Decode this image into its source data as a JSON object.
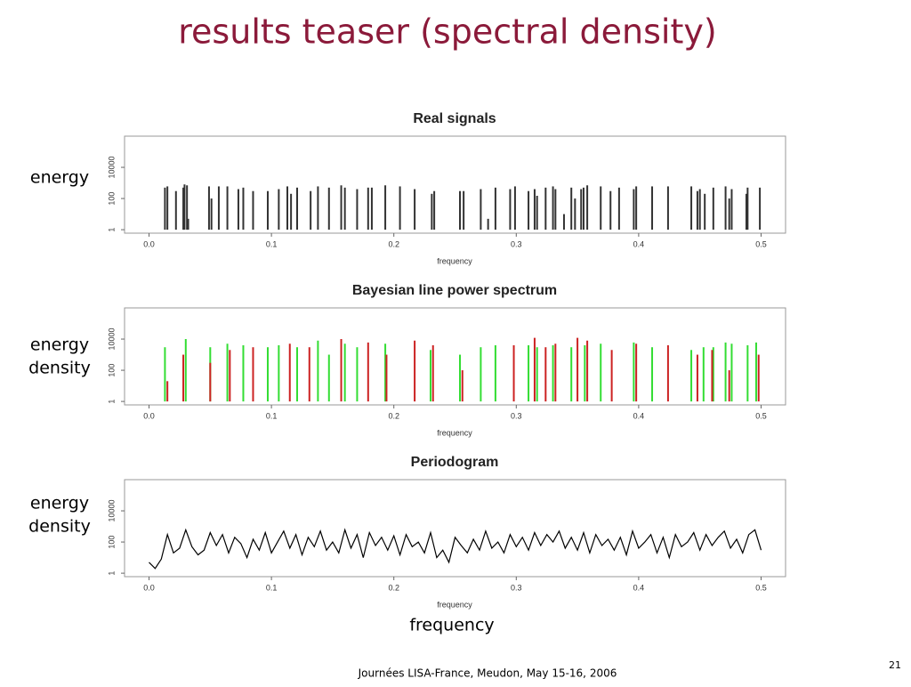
{
  "title": "results teaser (spectral density)",
  "bottom_label": "frequency",
  "footer": "Journées LISA-France, Meudon, May 15-16,  2006",
  "page_number": "21",
  "side_labels": [
    [
      "energy"
    ],
    [
      "energy",
      "density"
    ],
    [
      "energy",
      "density"
    ]
  ],
  "chart_data": [
    {
      "type": "spike",
      "title": "Real signals",
      "x_label": "frequency",
      "ylog": true,
      "xlim": [
        -0.02,
        0.52
      ],
      "xticks": [
        {
          "value": 0,
          "label": "0.0"
        },
        0.1,
        0.2,
        0.3,
        0.4,
        0.5
      ],
      "ylim": [
        0.6,
        1000000
      ],
      "yticks": [
        1,
        100,
        10000
      ],
      "series": [
        {
          "color": "#333333",
          "x": [
            0.013,
            0.015,
            0.022,
            0.028,
            0.029,
            0.031,
            0.032,
            0.049,
            0.051,
            0.057,
            0.064,
            0.073,
            0.077,
            0.085,
            0.097,
            0.106,
            0.113,
            0.116,
            0.121,
            0.132,
            0.138,
            0.147,
            0.157,
            0.16,
            0.17,
            0.179,
            0.182,
            0.193,
            0.205,
            0.217,
            0.231,
            0.233,
            0.254,
            0.257,
            0.271,
            0.277,
            0.283,
            0.295,
            0.299,
            0.31,
            0.315,
            0.317,
            0.324,
            0.33,
            0.332,
            0.339,
            0.345,
            0.348,
            0.353,
            0.355,
            0.358,
            0.369,
            0.377,
            0.384,
            0.396,
            0.398,
            0.411,
            0.424,
            0.443,
            0.448,
            0.45,
            0.454,
            0.461,
            0.471,
            0.474,
            0.476,
            0.488,
            0.489,
            0.499
          ],
          "values": [
            500,
            600,
            300,
            500,
            800,
            700,
            5,
            600,
            100,
            600,
            600,
            400,
            500,
            300,
            300,
            400,
            600,
            200,
            500,
            300,
            600,
            500,
            700,
            500,
            400,
            500,
            500,
            700,
            600,
            400,
            200,
            300,
            300,
            300,
            400,
            5,
            500,
            400,
            600,
            300,
            400,
            150,
            500,
            600,
            400,
            10,
            500,
            100,
            400,
            500,
            700,
            600,
            300,
            500,
            400,
            600,
            600,
            600,
            600,
            300,
            400,
            200,
            500,
            600,
            100,
            400,
            200,
            500,
            500
          ]
        }
      ]
    },
    {
      "type": "spike",
      "title": "Bayesian line power spectrum",
      "x_label": "frequency",
      "ylog": true,
      "xlim": [
        -0.02,
        0.52
      ],
      "xticks": [
        {
          "value": 0,
          "label": "0.0"
        },
        0.1,
        0.2,
        0.3,
        0.4,
        0.5
      ],
      "ylim": [
        0.6,
        1000000
      ],
      "yticks": [
        1,
        100,
        10000
      ],
      "series": [
        {
          "color": "#33dd33",
          "x": [
            0.013,
            0.03,
            0.05,
            0.064,
            0.077,
            0.097,
            0.106,
            0.121,
            0.138,
            0.147,
            0.16,
            0.17,
            0.193,
            0.23,
            0.254,
            0.271,
            0.283,
            0.31,
            0.317,
            0.33,
            0.345,
            0.356,
            0.369,
            0.396,
            0.411,
            0.443,
            0.453,
            0.461,
            0.471,
            0.476,
            0.489,
            0.496
          ],
          "values": [
            3000,
            10000,
            3000,
            5000,
            4000,
            3000,
            4000,
            3000,
            8000,
            1000,
            5000,
            3000,
            5000,
            2000,
            1000,
            3000,
            4000,
            4000,
            3000,
            4000,
            3000,
            4000,
            5000,
            6000,
            3000,
            2000,
            3000,
            3000,
            6000,
            5000,
            4000,
            6000
          ]
        },
        {
          "color": "#cc2222",
          "x": [
            0.015,
            0.028,
            0.05,
            0.066,
            0.085,
            0.115,
            0.131,
            0.157,
            0.179,
            0.194,
            0.217,
            0.232,
            0.256,
            0.298,
            0.315,
            0.324,
            0.332,
            0.35,
            0.358,
            0.378,
            0.398,
            0.424,
            0.448,
            0.46,
            0.474,
            0.498
          ],
          "values": [
            20,
            1000,
            300,
            2000,
            3000,
            5000,
            3000,
            10000,
            6000,
            1000,
            8000,
            4000,
            100,
            4000,
            12000,
            3000,
            5000,
            12000,
            8000,
            2000,
            5000,
            4000,
            1000,
            2000,
            100,
            1000
          ]
        }
      ]
    },
    {
      "type": "line",
      "title": "Periodogram",
      "x_label": "frequency",
      "ylog": true,
      "color": "#000000",
      "xlim": [
        -0.02,
        0.52
      ],
      "xticks": [
        {
          "value": 0,
          "label": "0.0"
        },
        0.1,
        0.2,
        0.3,
        0.4,
        0.5
      ],
      "ylim": [
        0.6,
        1000000
      ],
      "yticks": [
        1,
        100,
        10000
      ],
      "x": [
        0,
        0.005,
        0.01,
        0.015,
        0.02,
        0.025,
        0.03,
        0.035,
        0.04,
        0.045,
        0.05,
        0.055,
        0.06,
        0.065,
        0.07,
        0.075,
        0.08,
        0.085,
        0.09,
        0.095,
        0.1,
        0.105,
        0.11,
        0.115,
        0.12,
        0.125,
        0.13,
        0.135,
        0.14,
        0.145,
        0.15,
        0.155,
        0.16,
        0.165,
        0.17,
        0.175,
        0.18,
        0.185,
        0.19,
        0.195,
        0.2,
        0.205,
        0.21,
        0.215,
        0.22,
        0.225,
        0.23,
        0.235,
        0.24,
        0.245,
        0.25,
        0.255,
        0.26,
        0.265,
        0.27,
        0.275,
        0.28,
        0.285,
        0.29,
        0.295,
        0.3,
        0.305,
        0.31,
        0.315,
        0.32,
        0.325,
        0.33,
        0.335,
        0.34,
        0.345,
        0.35,
        0.355,
        0.36,
        0.365,
        0.37,
        0.375,
        0.38,
        0.385,
        0.39,
        0.395,
        0.4,
        0.405,
        0.41,
        0.415,
        0.42,
        0.425,
        0.43,
        0.435,
        0.44,
        0.445,
        0.45,
        0.455,
        0.46,
        0.465,
        0.47,
        0.475,
        0.48,
        0.485,
        0.49,
        0.495,
        0.5
      ],
      "values": [
        5,
        2,
        8,
        300,
        20,
        40,
        600,
        50,
        15,
        30,
        400,
        60,
        300,
        20,
        200,
        80,
        10,
        150,
        30,
        400,
        20,
        100,
        500,
        40,
        300,
        15,
        200,
        50,
        500,
        30,
        100,
        20,
        600,
        40,
        300,
        10,
        400,
        60,
        200,
        30,
        250,
        15,
        300,
        50,
        100,
        20,
        400,
        10,
        30,
        5,
        200,
        60,
        20,
        150,
        30,
        500,
        40,
        100,
        20,
        300,
        50,
        200,
        30,
        400,
        60,
        300,
        100,
        500,
        40,
        200,
        30,
        400,
        20,
        300,
        60,
        150,
        30,
        200,
        15,
        500,
        40,
        100,
        300,
        20,
        200,
        10,
        300,
        50,
        100,
        400,
        30,
        300,
        60,
        200,
        500,
        40,
        150,
        20,
        300,
        600,
        30
      ]
    }
  ]
}
